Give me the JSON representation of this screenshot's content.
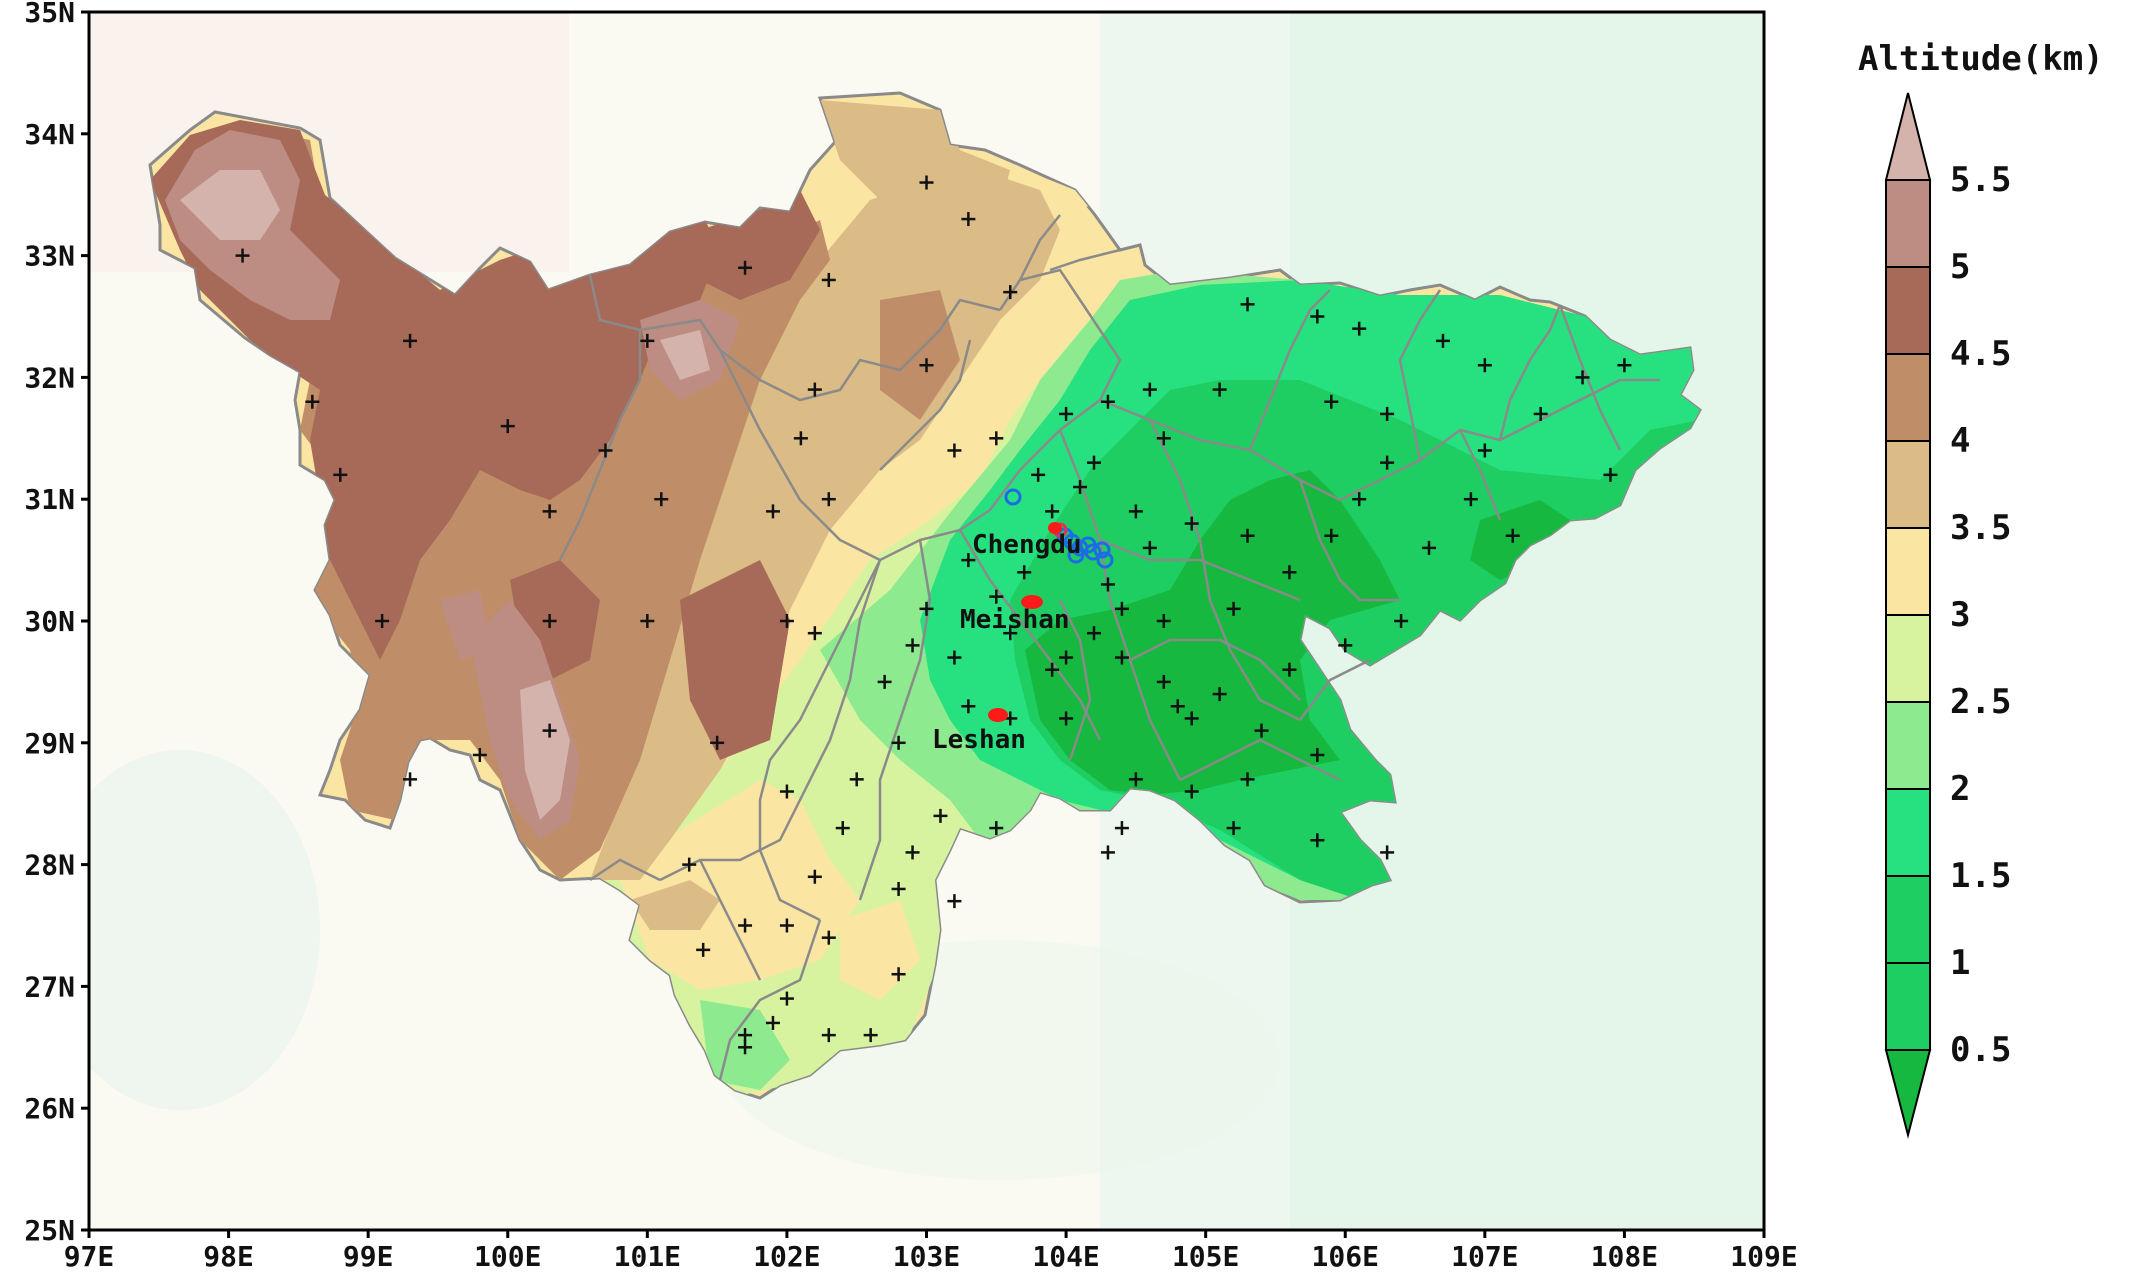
{
  "map": {
    "lon_ticks": [
      "97E",
      "98E",
      "99E",
      "100E",
      "101E",
      "102E",
      "103E",
      "104E",
      "105E",
      "106E",
      "107E",
      "108E",
      "109E"
    ],
    "lat_ticks": [
      "25N",
      "26N",
      "27N",
      "28N",
      "29N",
      "30N",
      "31N",
      "32N",
      "33N",
      "34N",
      "35N"
    ],
    "lon_range": [
      97,
      109
    ],
    "lat_range": [
      25,
      35
    ],
    "cities": [
      {
        "name": "Chengdu",
        "lon": 104.06,
        "lat": 30.67
      },
      {
        "name": "Meishan",
        "lon": 103.85,
        "lat": 30.05
      },
      {
        "name": "Leshan",
        "lon": 103.76,
        "lat": 29.55
      }
    ],
    "colors": {
      "lt_0_5": "#17b83f",
      "0_5_1": "#1ece62",
      "1_1_5": "#27e07f",
      "1_5_2": "#8eea8f",
      "2_2_5": "#d8f3a0",
      "2_5_3": "#fbe5a3",
      "3_3_5": "#dcbc86",
      "3_5_4": "#bf8e69",
      "4_4_5": "#a76a59",
      "4_5_5": "#bd8c82",
      "5_5_5": "#d4b3ac",
      "boundary": "#8a8a8a",
      "station_marker": "#111111",
      "city_marker": "#ff1a1a",
      "tower_marker": "#1e6be6"
    }
  },
  "legend": {
    "title": "Altitude(km)",
    "labels": [
      "5.5",
      "5",
      "4.5",
      "4",
      "3.5",
      "3",
      "2.5",
      "2",
      "1.5",
      "1",
      "0.5"
    ]
  },
  "stations": [
    [
      98.1,
      33.0
    ],
    [
      99.3,
      32.3
    ],
    [
      100.0,
      31.6
    ],
    [
      98.6,
      31.8
    ],
    [
      98.8,
      31.2
    ],
    [
      99.1,
      30.0
    ],
    [
      100.3,
      30.9
    ],
    [
      100.7,
      31.4
    ],
    [
      101.0,
      32.3
    ],
    [
      101.1,
      31.0
    ],
    [
      101.7,
      32.9
    ],
    [
      102.3,
      32.8
    ],
    [
      103.0,
      33.6
    ],
    [
      103.3,
      33.3
    ],
    [
      103.6,
      32.7
    ],
    [
      103.0,
      32.1
    ],
    [
      102.2,
      31.9
    ],
    [
      102.1,
      31.5
    ],
    [
      102.3,
      31.0
    ],
    [
      101.9,
      30.9
    ],
    [
      103.2,
      31.4
    ],
    [
      103.5,
      31.5
    ],
    [
      101.0,
      30.0
    ],
    [
      102.0,
      30.0
    ],
    [
      101.5,
      29.0
    ],
    [
      100.3,
      29.1
    ],
    [
      99.8,
      28.9
    ],
    [
      99.3,
      28.7
    ],
    [
      100.3,
      30.0
    ],
    [
      102.2,
      29.9
    ],
    [
      102.7,
      29.5
    ],
    [
      102.8,
      29.0
    ],
    [
      102.9,
      29.8
    ],
    [
      103.0,
      30.1
    ],
    [
      103.3,
      30.5
    ],
    [
      103.5,
      30.2
    ],
    [
      103.2,
      29.7
    ],
    [
      103.6,
      29.9
    ],
    [
      103.9,
      29.6
    ],
    [
      104.0,
      29.2
    ],
    [
      104.4,
      29.7
    ],
    [
      104.7,
      29.5
    ],
    [
      104.9,
      29.2
    ],
    [
      105.1,
      29.4
    ],
    [
      104.9,
      28.6
    ],
    [
      104.5,
      28.7
    ],
    [
      104.4,
      28.3
    ],
    [
      105.2,
      28.3
    ],
    [
      104.3,
      28.1
    ],
    [
      105.3,
      28.7
    ],
    [
      105.4,
      29.1
    ],
    [
      105.8,
      28.9
    ],
    [
      105.8,
      28.2
    ],
    [
      106.3,
      28.1
    ],
    [
      105.2,
      30.1
    ],
    [
      105.3,
      30.7
    ],
    [
      105.6,
      30.4
    ],
    [
      105.9,
      30.7
    ],
    [
      106.1,
      31.0
    ],
    [
      106.3,
      31.3
    ],
    [
      106.6,
      30.6
    ],
    [
      106.9,
      31.0
    ],
    [
      107.2,
      30.7
    ],
    [
      107.0,
      31.4
    ],
    [
      107.4,
      31.7
    ],
    [
      107.7,
      32.0
    ],
    [
      107.9,
      31.2
    ],
    [
      106.7,
      32.3
    ],
    [
      106.1,
      32.4
    ],
    [
      105.8,
      32.5
    ],
    [
      105.3,
      32.6
    ],
    [
      105.1,
      31.9
    ],
    [
      104.6,
      31.9
    ],
    [
      104.3,
      31.8
    ],
    [
      104.7,
      31.5
    ],
    [
      104.2,
      31.3
    ],
    [
      104.9,
      30.8
    ],
    [
      104.5,
      30.9
    ],
    [
      103.9,
      30.9
    ],
    [
      104.1,
      31.1
    ],
    [
      103.8,
      31.2
    ],
    [
      104.0,
      31.7
    ],
    [
      104.6,
      30.6
    ],
    [
      104.3,
      30.3
    ],
    [
      104.4,
      30.1
    ],
    [
      104.7,
      30.0
    ],
    [
      103.7,
      30.4
    ],
    [
      103.6,
      29.2
    ],
    [
      103.3,
      29.3
    ],
    [
      103.1,
      28.4
    ],
    [
      103.5,
      28.3
    ],
    [
      103.2,
      27.7
    ],
    [
      102.9,
      28.1
    ],
    [
      102.8,
      27.8
    ],
    [
      102.5,
      28.7
    ],
    [
      102.4,
      28.3
    ],
    [
      102.0,
      28.6
    ],
    [
      102.2,
      27.9
    ],
    [
      101.7,
      27.5
    ],
    [
      101.3,
      28.0
    ],
    [
      102.0,
      27.5
    ],
    [
      102.3,
      27.4
    ],
    [
      102.8,
      27.1
    ],
    [
      102.0,
      26.9
    ],
    [
      102.3,
      26.6
    ],
    [
      102.6,
      26.6
    ],
    [
      101.9,
      26.7
    ],
    [
      101.7,
      26.5
    ],
    [
      101.7,
      26.6
    ],
    [
      101.4,
      27.3
    ],
    [
      104.0,
      29.7
    ],
    [
      104.2,
      29.9
    ],
    [
      104.8,
      29.3
    ],
    [
      105.6,
      29.6
    ],
    [
      106.0,
      29.8
    ],
    [
      106.4,
      30.0
    ],
    [
      105.9,
      31.8
    ],
    [
      106.3,
      31.7
    ],
    [
      107.0,
      32.1
    ],
    [
      108.0,
      32.1
    ]
  ]
}
